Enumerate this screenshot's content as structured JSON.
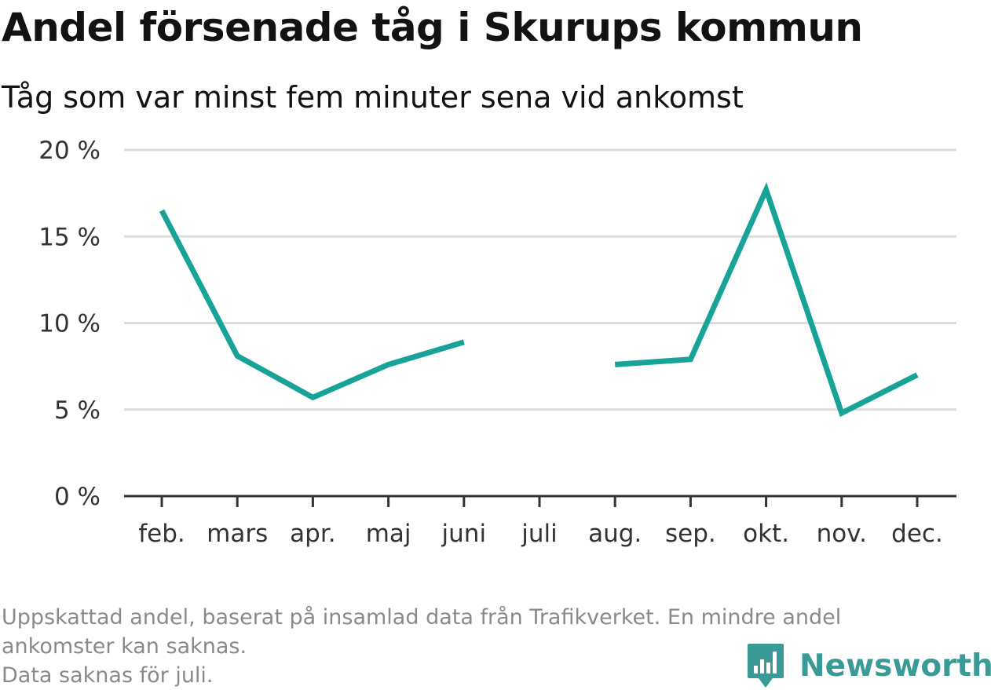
{
  "title": "Andel försenade tåg i Skurups kommun",
  "subtitle": "Tåg som var minst fem minuter sena vid ankomst",
  "footnote": {
    "line1": "Uppskattad andel, baserat på insamlad data från Trafikverket. En mindre andel",
    "line2": "ankomster kan saknas.",
    "line3": "Data saknas för juli."
  },
  "brand": {
    "name": "Newsworthy",
    "icon": "newsworthy-logo-icon",
    "color": "#3a9b96"
  },
  "colors": {
    "series": "#17a398",
    "grid": "#dcdcdc",
    "axis": "#333333",
    "tick_label": "#333333"
  },
  "chart_data": {
    "type": "line",
    "categories": [
      "feb.",
      "mars",
      "apr.",
      "maj",
      "juni",
      "juli",
      "aug.",
      "sep.",
      "okt.",
      "nov.",
      "dec."
    ],
    "series": [
      {
        "values": [
          16.5,
          8.1,
          5.7,
          7.6,
          8.9,
          null,
          7.6,
          7.9,
          17.7,
          4.8,
          7.0
        ]
      }
    ],
    "y_ticks": [
      0,
      5,
      10,
      15,
      20
    ],
    "y_tick_labels": [
      "0 %",
      "5 %",
      "10 %",
      "15 %",
      "20 %"
    ],
    "ylim": [
      0,
      20
    ],
    "grid": true,
    "legend": "none"
  }
}
